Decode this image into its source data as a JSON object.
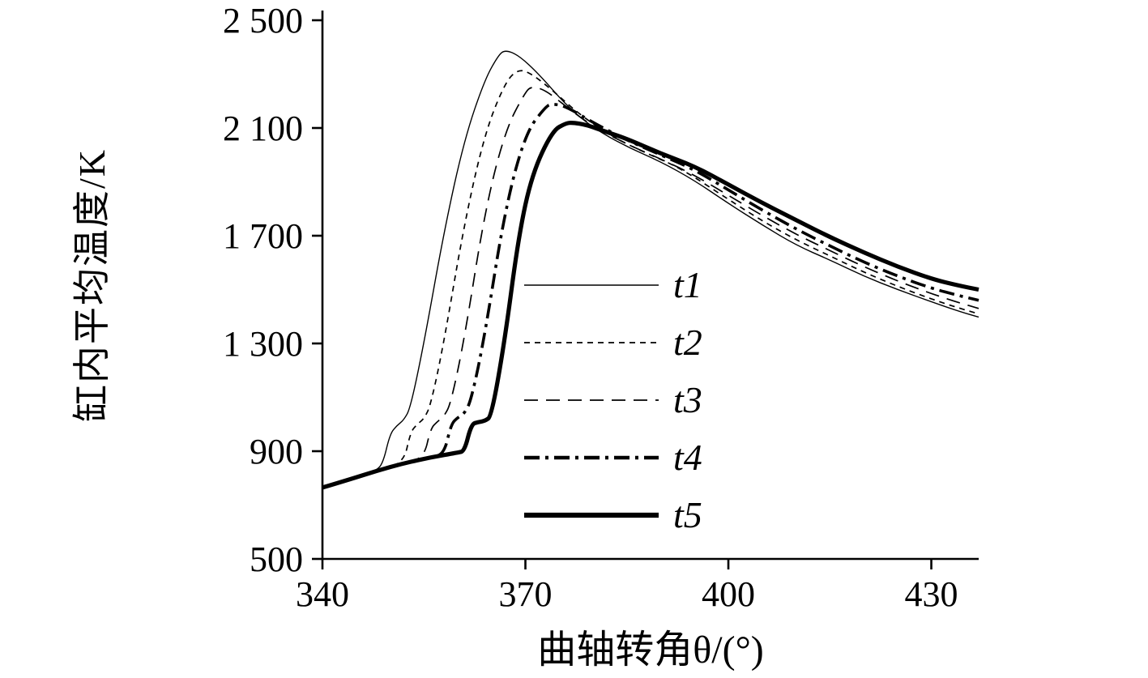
{
  "figure": {
    "background": "#ffffff",
    "line_color": "#000000"
  },
  "chart_data": {
    "type": "line",
    "title": "",
    "xlabel": "曲轴转角θ/(°)",
    "ylabel": "缸内平均温度/K",
    "xlim": [
      340,
      437
    ],
    "ylim": [
      500,
      2500
    ],
    "grid": false,
    "legend_position": "inside-center",
    "x_ticks": [
      {
        "value": 340,
        "label": "340"
      },
      {
        "value": 370,
        "label": "370"
      },
      {
        "value": 400,
        "label": "400"
      },
      {
        "value": 430,
        "label": "430"
      }
    ],
    "y_ticks": [
      {
        "value": 500,
        "label": "500"
      },
      {
        "value": 900,
        "label": "900"
      },
      {
        "value": 1300,
        "label": "1 300"
      },
      {
        "value": 1700,
        "label": "1 700"
      },
      {
        "value": 2100,
        "label": "2 100"
      },
      {
        "value": 2500,
        "label": "2 500"
      }
    ],
    "series": [
      {
        "name": "t1",
        "style": {
          "width": 1.4,
          "dash": ""
        },
        "points": [
          [
            340,
            765
          ],
          [
            344,
            795
          ],
          [
            348,
            827
          ],
          [
            349,
            860
          ],
          [
            350,
            965
          ],
          [
            351,
            995
          ],
          [
            352,
            1015
          ],
          [
            353,
            1060
          ],
          [
            355,
            1300
          ],
          [
            358,
            1720
          ],
          [
            361,
            2060
          ],
          [
            364,
            2280
          ],
          [
            366,
            2370
          ],
          [
            367,
            2390
          ],
          [
            369,
            2370
          ],
          [
            372,
            2300
          ],
          [
            376,
            2185
          ],
          [
            380,
            2100
          ],
          [
            385,
            2030
          ],
          [
            390,
            1975
          ],
          [
            395,
            1905
          ],
          [
            400,
            1820
          ],
          [
            405,
            1740
          ],
          [
            410,
            1665
          ],
          [
            415,
            1610
          ],
          [
            420,
            1550
          ],
          [
            425,
            1500
          ],
          [
            430,
            1455
          ],
          [
            434,
            1420
          ],
          [
            437,
            1398
          ]
        ]
      },
      {
        "name": "t2",
        "style": {
          "width": 1.7,
          "dash": "7 6"
        },
        "points": [
          [
            340,
            765
          ],
          [
            344,
            795
          ],
          [
            348,
            827
          ],
          [
            352,
            855
          ],
          [
            353,
            970
          ],
          [
            354,
            1000
          ],
          [
            355,
            1020
          ],
          [
            356,
            1070
          ],
          [
            358,
            1310
          ],
          [
            361,
            1750
          ],
          [
            364,
            2080
          ],
          [
            367,
            2270
          ],
          [
            369,
            2320
          ],
          [
            371,
            2300
          ],
          [
            374,
            2240
          ],
          [
            378,
            2150
          ],
          [
            383,
            2065
          ],
          [
            388,
            2005
          ],
          [
            393,
            1950
          ],
          [
            400,
            1835
          ],
          [
            405,
            1755
          ],
          [
            410,
            1685
          ],
          [
            415,
            1625
          ],
          [
            420,
            1565
          ],
          [
            425,
            1512
          ],
          [
            430,
            1465
          ],
          [
            434,
            1432
          ],
          [
            437,
            1410
          ]
        ]
      },
      {
        "name": "t3",
        "style": {
          "width": 1.7,
          "dash": "17 10"
        },
        "points": [
          [
            340,
            765
          ],
          [
            344,
            795
          ],
          [
            348,
            827
          ],
          [
            352,
            855
          ],
          [
            355,
            875
          ],
          [
            356,
            985
          ],
          [
            357,
            1010
          ],
          [
            358,
            1030
          ],
          [
            359,
            1080
          ],
          [
            361,
            1320
          ],
          [
            364,
            1790
          ],
          [
            367,
            2090
          ],
          [
            370,
            2235
          ],
          [
            371,
            2255
          ],
          [
            373,
            2240
          ],
          [
            376,
            2180
          ],
          [
            380,
            2105
          ],
          [
            385,
            2040
          ],
          [
            390,
            1985
          ],
          [
            395,
            1925
          ],
          [
            400,
            1850
          ],
          [
            405,
            1775
          ],
          [
            410,
            1705
          ],
          [
            415,
            1645
          ],
          [
            420,
            1585
          ],
          [
            425,
            1532
          ],
          [
            430,
            1485
          ],
          [
            434,
            1452
          ],
          [
            437,
            1430
          ]
        ]
      },
      {
        "name": "t4",
        "style": {
          "width": 3.6,
          "dash": "19 7 4 7"
        },
        "points": [
          [
            340,
            765
          ],
          [
            344,
            795
          ],
          [
            348,
            827
          ],
          [
            352,
            855
          ],
          [
            356,
            877
          ],
          [
            358,
            890
          ],
          [
            359,
            1000
          ],
          [
            360,
            1025
          ],
          [
            361,
            1040
          ],
          [
            362,
            1090
          ],
          [
            364,
            1330
          ],
          [
            367,
            1800
          ],
          [
            370,
            2080
          ],
          [
            373,
            2180
          ],
          [
            374,
            2190
          ],
          [
            376,
            2180
          ],
          [
            380,
            2120
          ],
          [
            385,
            2055
          ],
          [
            390,
            2000
          ],
          [
            395,
            1945
          ],
          [
            400,
            1870
          ],
          [
            405,
            1795
          ],
          [
            410,
            1725
          ],
          [
            415,
            1662
          ],
          [
            420,
            1602
          ],
          [
            425,
            1550
          ],
          [
            430,
            1505
          ],
          [
            434,
            1478
          ],
          [
            437,
            1460
          ]
        ]
      },
      {
        "name": "t5",
        "style": {
          "width": 5.2,
          "dash": ""
        },
        "points": [
          [
            340,
            765
          ],
          [
            344,
            795
          ],
          [
            348,
            827
          ],
          [
            352,
            855
          ],
          [
            356,
            877
          ],
          [
            360,
            895
          ],
          [
            361,
            900
          ],
          [
            362,
            1000
          ],
          [
            363,
            1008
          ],
          [
            364,
            1012
          ],
          [
            365,
            1030
          ],
          [
            367,
            1320
          ],
          [
            369,
            1700
          ],
          [
            371,
            1930
          ],
          [
            374,
            2090
          ],
          [
            376,
            2118
          ],
          [
            377,
            2120
          ],
          [
            379,
            2112
          ],
          [
            382,
            2085
          ],
          [
            385,
            2060
          ],
          [
            390,
            2005
          ],
          [
            395,
            1958
          ],
          [
            400,
            1890
          ],
          [
            405,
            1822
          ],
          [
            410,
            1758
          ],
          [
            415,
            1695
          ],
          [
            420,
            1638
          ],
          [
            425,
            1585
          ],
          [
            430,
            1540
          ],
          [
            434,
            1515
          ],
          [
            437,
            1500
          ]
        ]
      }
    ]
  }
}
